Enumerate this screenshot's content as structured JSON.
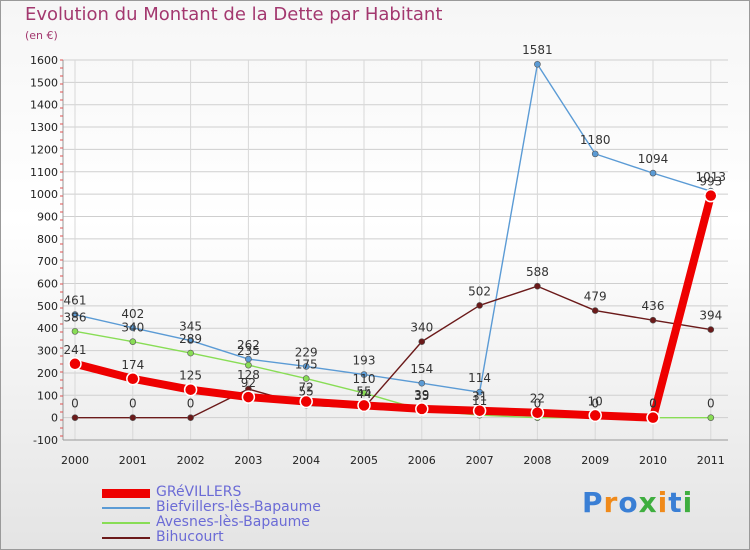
{
  "title": "Evolution du Montant de la Dette par Habitant",
  "subtitle": "(en €)",
  "chart_data": {
    "type": "line",
    "x": [
      "2000",
      "2001",
      "2002",
      "2003",
      "2004",
      "2005",
      "2006",
      "2007",
      "2008",
      "2009",
      "2010",
      "2011"
    ],
    "ylim": [
      -100,
      1600
    ],
    "yticks": [
      -100,
      0,
      100,
      200,
      300,
      400,
      500,
      600,
      700,
      800,
      900,
      1000,
      1100,
      1200,
      1300,
      1400,
      1500,
      1600
    ],
    "grid": true,
    "legend_position": "bottom-left",
    "series": [
      {
        "name": "GRéVILLERS",
        "color": "#ee0000",
        "values": [
          241,
          174,
          125,
          92,
          72,
          55,
          39,
          31,
          22,
          10,
          0,
          993
        ],
        "labels": [
          "241",
          "174",
          "125",
          "92",
          "72",
          "55",
          "39",
          "31",
          "22",
          "10",
          "0",
          "993"
        ]
      },
      {
        "name": "Biefvillers-lès-Bapaume",
        "color": "#5b9bd5",
        "values": [
          461,
          402,
          345,
          262,
          229,
          193,
          154,
          114,
          1581,
          1180,
          1094,
          1013
        ],
        "labels": [
          "461",
          "402",
          "345",
          "262",
          "229",
          "193",
          "154",
          "114",
          "1581",
          "1180",
          "1094",
          "1013"
        ]
      },
      {
        "name": "Avesnes-lès-Bapaume",
        "color": "#88dd55",
        "values": [
          386,
          340,
          289,
          235,
          175,
          110,
          35,
          11,
          0,
          0,
          0,
          0
        ],
        "labels": [
          "386",
          "340",
          "289",
          "235",
          "175",
          "110",
          "35",
          "11",
          "0",
          "0",
          "0",
          "0"
        ]
      },
      {
        "name": "Bihucourt",
        "color": "#6b1a1a",
        "values": [
          0,
          0,
          0,
          128,
          55,
          44,
          340,
          502,
          588,
          479,
          436,
          394
        ],
        "labels": [
          "0",
          "0",
          "0",
          "128",
          "55",
          "44",
          "340",
          "502",
          "588",
          "479",
          "436",
          "394"
        ]
      }
    ]
  },
  "logo": {
    "text": "Proxiti",
    "colors": [
      "#3a7fd5",
      "#f08a1a",
      "#3a7fd5",
      "#3fae3f",
      "#f08a1a",
      "#3a7fd5",
      "#3fae3f"
    ]
  }
}
